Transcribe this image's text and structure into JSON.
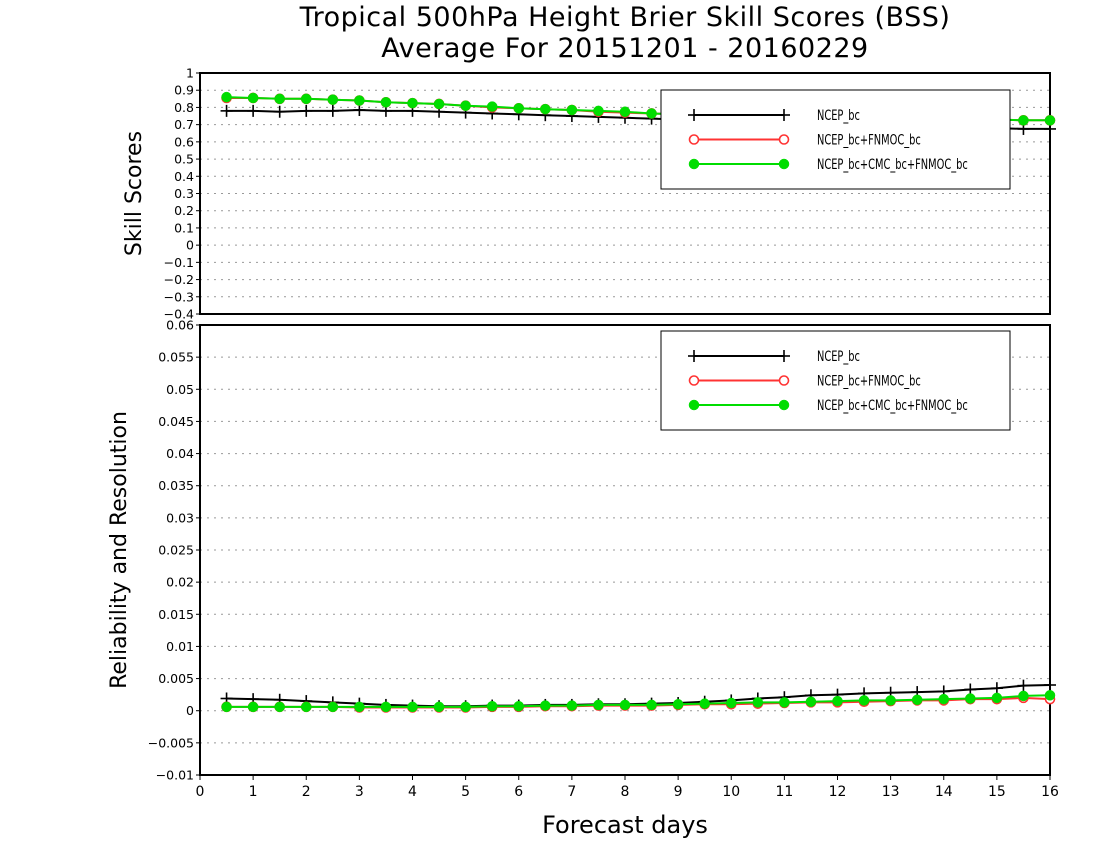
{
  "chart_data": [
    {
      "type": "line",
      "title": "Tropical 500hPa Height Brier Skill Scores (BSS)",
      "subtitle": "Average For 20151201 - 20160229",
      "ylabel": "Skill Scores",
      "xlabel": "",
      "xlim": [
        0,
        16
      ],
      "ylim": [
        -0.4,
        1
      ],
      "yticks": [
        "1",
        "0.9",
        "0.8",
        "0.7",
        "0.6",
        "0.5",
        "0.4",
        "0.3",
        "0.2",
        "0.1",
        "0",
        "−0.1",
        "−0.2",
        "−0.3",
        "−0.4"
      ],
      "grid": true,
      "legend": "top-right",
      "x": [
        0.5,
        1,
        1.5,
        2,
        2.5,
        3,
        3.5,
        4,
        4.5,
        5,
        5.5,
        6,
        6.5,
        7,
        7.5,
        8,
        8.5,
        9,
        9.5,
        10,
        10.5,
        11,
        11.5,
        12,
        12.5,
        13,
        13.5,
        14,
        14.5,
        15,
        15.5,
        16
      ],
      "series": [
        {
          "name": "NCEP_bc",
          "color": "#000000",
          "marker": "plus",
          "values": [
            0.78,
            0.78,
            0.775,
            0.78,
            0.78,
            0.785,
            0.78,
            0.78,
            0.775,
            0.77,
            0.765,
            0.76,
            0.755,
            0.75,
            0.745,
            0.74,
            0.735,
            0.73,
            0.725,
            0.72,
            0.715,
            0.71,
            0.705,
            0.7,
            0.7,
            0.695,
            0.69,
            0.69,
            0.685,
            0.68,
            0.675,
            0.675
          ]
        },
        {
          "name": "NCEP_bc+FNMOC_bc",
          "color": "#ff3333",
          "marker": "circle-open",
          "values": [
            0.855,
            0.855,
            0.85,
            0.85,
            0.845,
            0.84,
            0.83,
            0.825,
            0.82,
            0.81,
            0.8,
            0.795,
            0.79,
            0.785,
            0.775,
            0.77,
            0.765,
            0.76,
            0.755,
            0.75,
            0.745,
            0.745,
            0.74,
            0.74,
            0.735,
            0.735,
            0.735,
            0.73,
            0.73,
            0.73,
            0.725,
            0.725
          ]
        },
        {
          "name": "NCEP_bc+CMC_bc+FNMOC_bc",
          "color": "#00dd00",
          "marker": "circle-filled",
          "values": [
            0.86,
            0.855,
            0.85,
            0.85,
            0.845,
            0.84,
            0.83,
            0.825,
            0.82,
            0.81,
            0.805,
            0.795,
            0.79,
            0.785,
            0.78,
            0.775,
            0.765,
            0.76,
            0.755,
            0.75,
            0.75,
            0.745,
            0.745,
            0.74,
            0.74,
            0.735,
            0.735,
            0.735,
            0.73,
            0.73,
            0.725,
            0.725
          ]
        }
      ]
    },
    {
      "type": "line",
      "ylabel": "Reliability and Resolution",
      "xlabel": "Forecast days",
      "xlim": [
        0,
        16
      ],
      "ylim": [
        -0.01,
        0.06
      ],
      "xticks": [
        "0",
        "1",
        "2",
        "3",
        "4",
        "5",
        "6",
        "7",
        "8",
        "9",
        "10",
        "11",
        "12",
        "13",
        "14",
        "15",
        "16"
      ],
      "yticks": [
        "0.06",
        "0.055",
        "0.05",
        "0.045",
        "0.04",
        "0.035",
        "0.03",
        "0.025",
        "0.02",
        "0.015",
        "0.01",
        "0.005",
        "0",
        "−0.005",
        "−0.01"
      ],
      "grid": true,
      "legend": "top-right",
      "x": [
        0.5,
        1,
        1.5,
        2,
        2.5,
        3,
        3.5,
        4,
        4.5,
        5,
        5.5,
        6,
        6.5,
        7,
        7.5,
        8,
        8.5,
        9,
        9.5,
        10,
        10.5,
        11,
        11.5,
        12,
        12.5,
        13,
        13.5,
        14,
        14.5,
        15,
        15.5,
        16
      ],
      "series": [
        {
          "name": "NCEP_bc",
          "color": "#000000",
          "marker": "plus",
          "values": [
            0.0019,
            0.0018,
            0.0017,
            0.0015,
            0.0013,
            0.0011,
            0.0009,
            0.0008,
            0.0007,
            0.0007,
            0.0008,
            0.0008,
            0.0009,
            0.0009,
            0.001,
            0.001,
            0.0011,
            0.0012,
            0.0014,
            0.0016,
            0.0019,
            0.0021,
            0.0024,
            0.0025,
            0.0027,
            0.0028,
            0.0029,
            0.003,
            0.0033,
            0.0035,
            0.0039,
            0.004
          ]
        },
        {
          "name": "NCEP_bc+FNMOC_bc",
          "color": "#ff3333",
          "marker": "circle-open",
          "values": [
            0.0006,
            0.0006,
            0.0006,
            0.0006,
            0.0006,
            0.0005,
            0.0005,
            0.0005,
            0.0005,
            0.0005,
            0.0006,
            0.0006,
            0.0007,
            0.0007,
            0.0008,
            0.0008,
            0.0008,
            0.0009,
            0.001,
            0.001,
            0.0011,
            0.0012,
            0.0013,
            0.0013,
            0.0014,
            0.0015,
            0.0016,
            0.0016,
            0.0018,
            0.0018,
            0.002,
            0.0018
          ]
        },
        {
          "name": "NCEP_bc+CMC_bc+FNMOC_bc",
          "color": "#00dd00",
          "marker": "circle-filled",
          "values": [
            0.0006,
            0.0006,
            0.0006,
            0.0006,
            0.0006,
            0.0006,
            0.0006,
            0.0006,
            0.0006,
            0.0006,
            0.0007,
            0.0007,
            0.0008,
            0.0008,
            0.0009,
            0.0009,
            0.0009,
            0.001,
            0.0011,
            0.0012,
            0.0013,
            0.0013,
            0.0014,
            0.0015,
            0.0016,
            0.0016,
            0.0017,
            0.0018,
            0.0019,
            0.002,
            0.0023,
            0.0024
          ]
        }
      ]
    }
  ]
}
